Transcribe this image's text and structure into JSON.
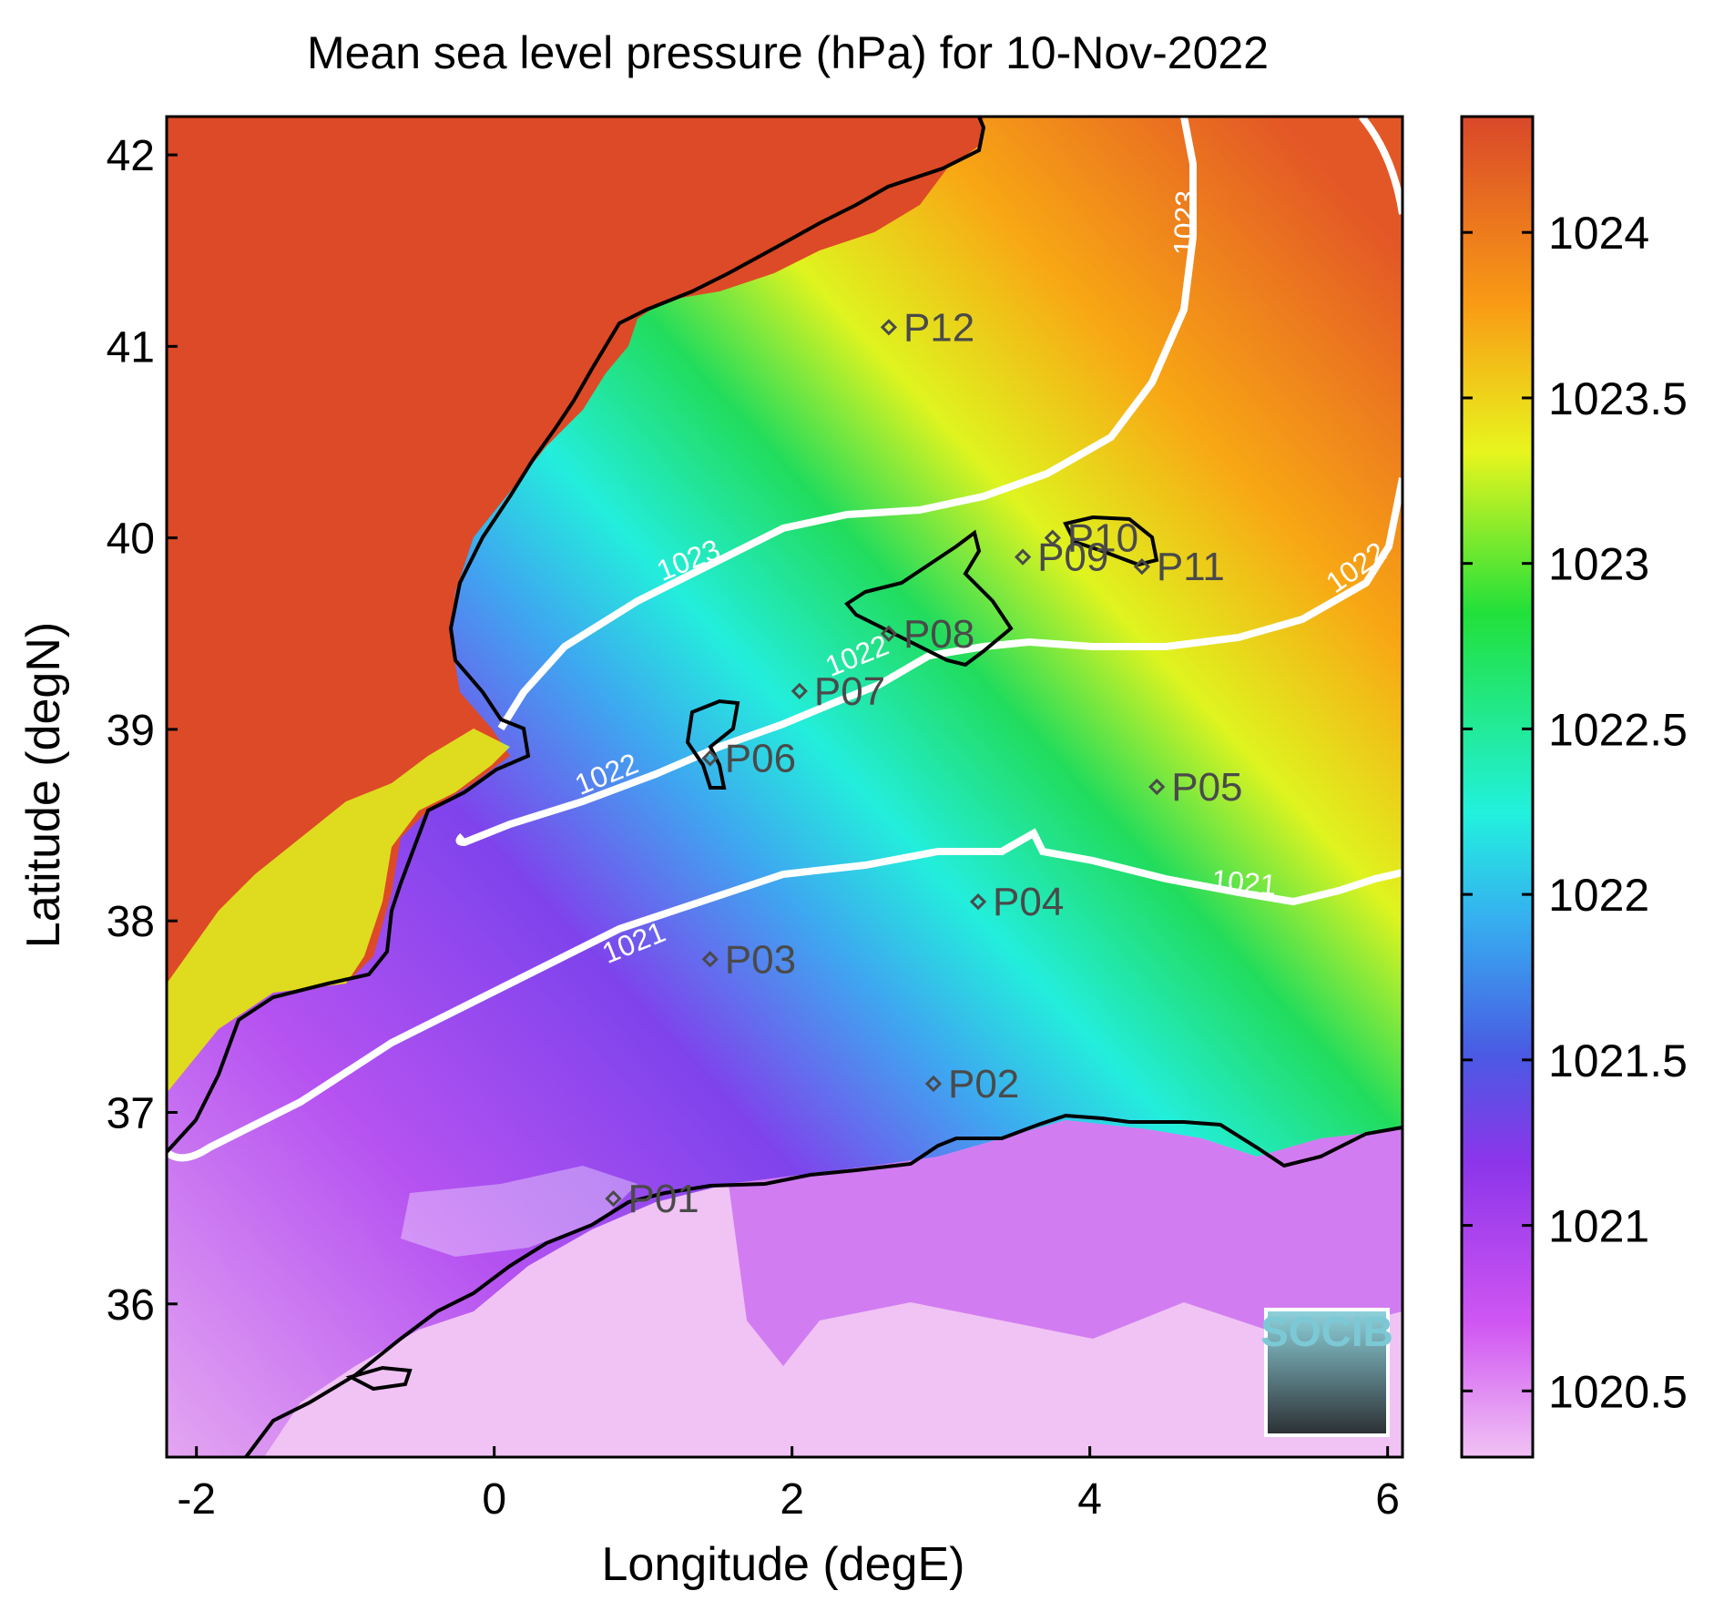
{
  "title": "Mean sea level pressure (hPa) for 10-Nov-2022",
  "map": {
    "xlabel": "Longitude (degE)",
    "ylabel": "Latitude (degN)",
    "xlim": [
      -2.2,
      6.1
    ],
    "ylim": [
      35.2,
      42.2
    ],
    "xticks": [
      "-2",
      "0",
      "2",
      "4",
      "6"
    ],
    "yticks": [
      "36",
      "37",
      "38",
      "39",
      "40",
      "41",
      "42"
    ],
    "colorbar": {
      "range": [
        1020.3,
        1024.35
      ],
      "ticks": [
        "1020.5",
        "1021",
        "1021.5",
        "1022",
        "1022.5",
        "1023",
        "1023.5",
        "1024"
      ]
    },
    "contour_levels": [
      {
        "level": "1021",
        "labels": 2
      },
      {
        "level": "1022",
        "labels": 3
      },
      {
        "level": "1023",
        "labels": 2
      }
    ],
    "stations": [
      {
        "id": "P01",
        "lon": 0.8,
        "lat": 36.55
      },
      {
        "id": "P02",
        "lon": 2.95,
        "lat": 37.15
      },
      {
        "id": "P03",
        "lon": 1.45,
        "lat": 37.8
      },
      {
        "id": "P04",
        "lon": 3.25,
        "lat": 38.1
      },
      {
        "id": "P05",
        "lon": 4.45,
        "lat": 38.7
      },
      {
        "id": "P06",
        "lon": 1.45,
        "lat": 38.85
      },
      {
        "id": "P07",
        "lon": 2.05,
        "lat": 39.2
      },
      {
        "id": "P08",
        "lon": 2.65,
        "lat": 39.5
      },
      {
        "id": "P09",
        "lon": 3.55,
        "lat": 39.9
      },
      {
        "id": "P10",
        "lon": 3.75,
        "lat": 40.0
      },
      {
        "id": "P11",
        "lon": 4.35,
        "lat": 39.85
      },
      {
        "id": "P12",
        "lon": 2.65,
        "lat": 41.1
      }
    ],
    "logo": "SOCIB"
  }
}
